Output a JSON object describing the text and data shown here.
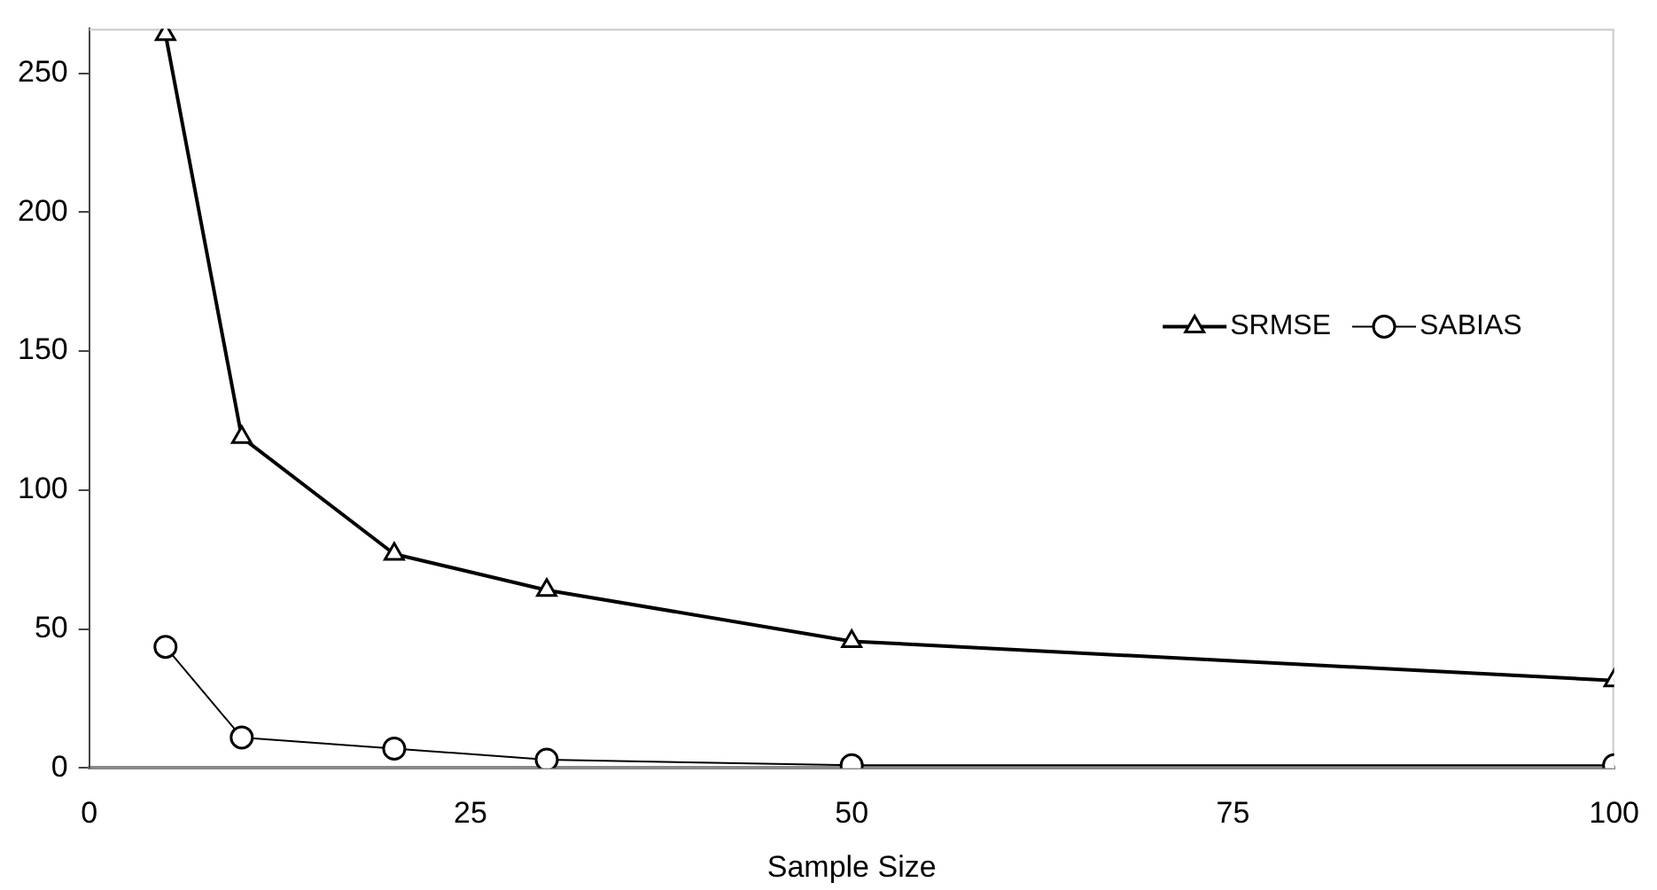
{
  "chart_data": {
    "type": "line",
    "xlabel": "Sample Size",
    "x": [
      5,
      10,
      20,
      30,
      50,
      100
    ],
    "series": [
      {
        "name": "SRMSE",
        "color": "#000000",
        "marker": "triangle",
        "values": [
          264,
          119,
          77,
          64,
          45.6,
          31.5
        ]
      },
      {
        "name": "SABIAS",
        "color": "#000000",
        "marker": "circle",
        "values": [
          43.6,
          11,
          7,
          3,
          1,
          1
        ]
      }
    ],
    "xlim": [
      0,
      100
    ],
    "xticks": [
      0,
      25,
      50,
      75,
      100
    ],
    "ylim": [
      0,
      266
    ],
    "yticks": [
      0,
      50,
      100,
      150,
      200,
      250
    ],
    "grid": false,
    "legend": "top right"
  }
}
